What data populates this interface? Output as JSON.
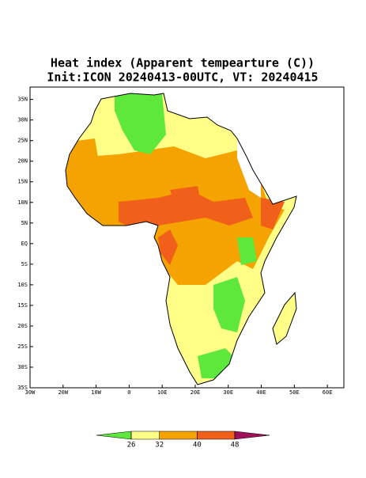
{
  "chart_data": {
    "type": "map",
    "title": "Heat index (Apparent tempearture (C))",
    "subtitle": "Init:ICON 20240413-00UTC, VT: 20240415",
    "xlim": [
      -30,
      65
    ],
    "ylim": [
      -35,
      38
    ],
    "xticks": [
      {
        "value": -30,
        "label": "30W"
      },
      {
        "value": -20,
        "label": "20W"
      },
      {
        "value": -10,
        "label": "10W"
      },
      0,
      {
        "value": 10,
        "label": "10E"
      },
      {
        "value": 20,
        "label": "20E"
      },
      {
        "value": 30,
        "label": "30E"
      },
      {
        "value": 40,
        "label": "40E"
      },
      {
        "value": 50,
        "label": "50E"
      },
      {
        "value": 60,
        "label": "60E"
      }
    ],
    "yticks": [
      {
        "value": 35,
        "label": "35N"
      },
      {
        "value": 30,
        "label": "30N"
      },
      {
        "value": 25,
        "label": "25N"
      },
      {
        "value": 20,
        "label": "20N"
      },
      {
        "value": 15,
        "label": "15N"
      },
      {
        "value": 10,
        "label": "10N"
      },
      {
        "value": 5,
        "label": "5N"
      },
      {
        "value": 0,
        "label": "EQ"
      },
      {
        "value": -5,
        "label": "5S"
      },
      {
        "value": -10,
        "label": "10S"
      },
      {
        "value": -15,
        "label": "15S"
      },
      {
        "value": -20,
        "label": "20S"
      },
      {
        "value": -25,
        "label": "25S"
      },
      {
        "value": -30,
        "label": "30S"
      },
      {
        "value": -35,
        "label": "35S"
      }
    ],
    "colorbar": {
      "levels": [
        26,
        32,
        40,
        48
      ],
      "colors": [
        "#5ee83c",
        "#ffff88",
        "#f5a300",
        "#f0601a",
        "#a0105a"
      ]
    }
  }
}
